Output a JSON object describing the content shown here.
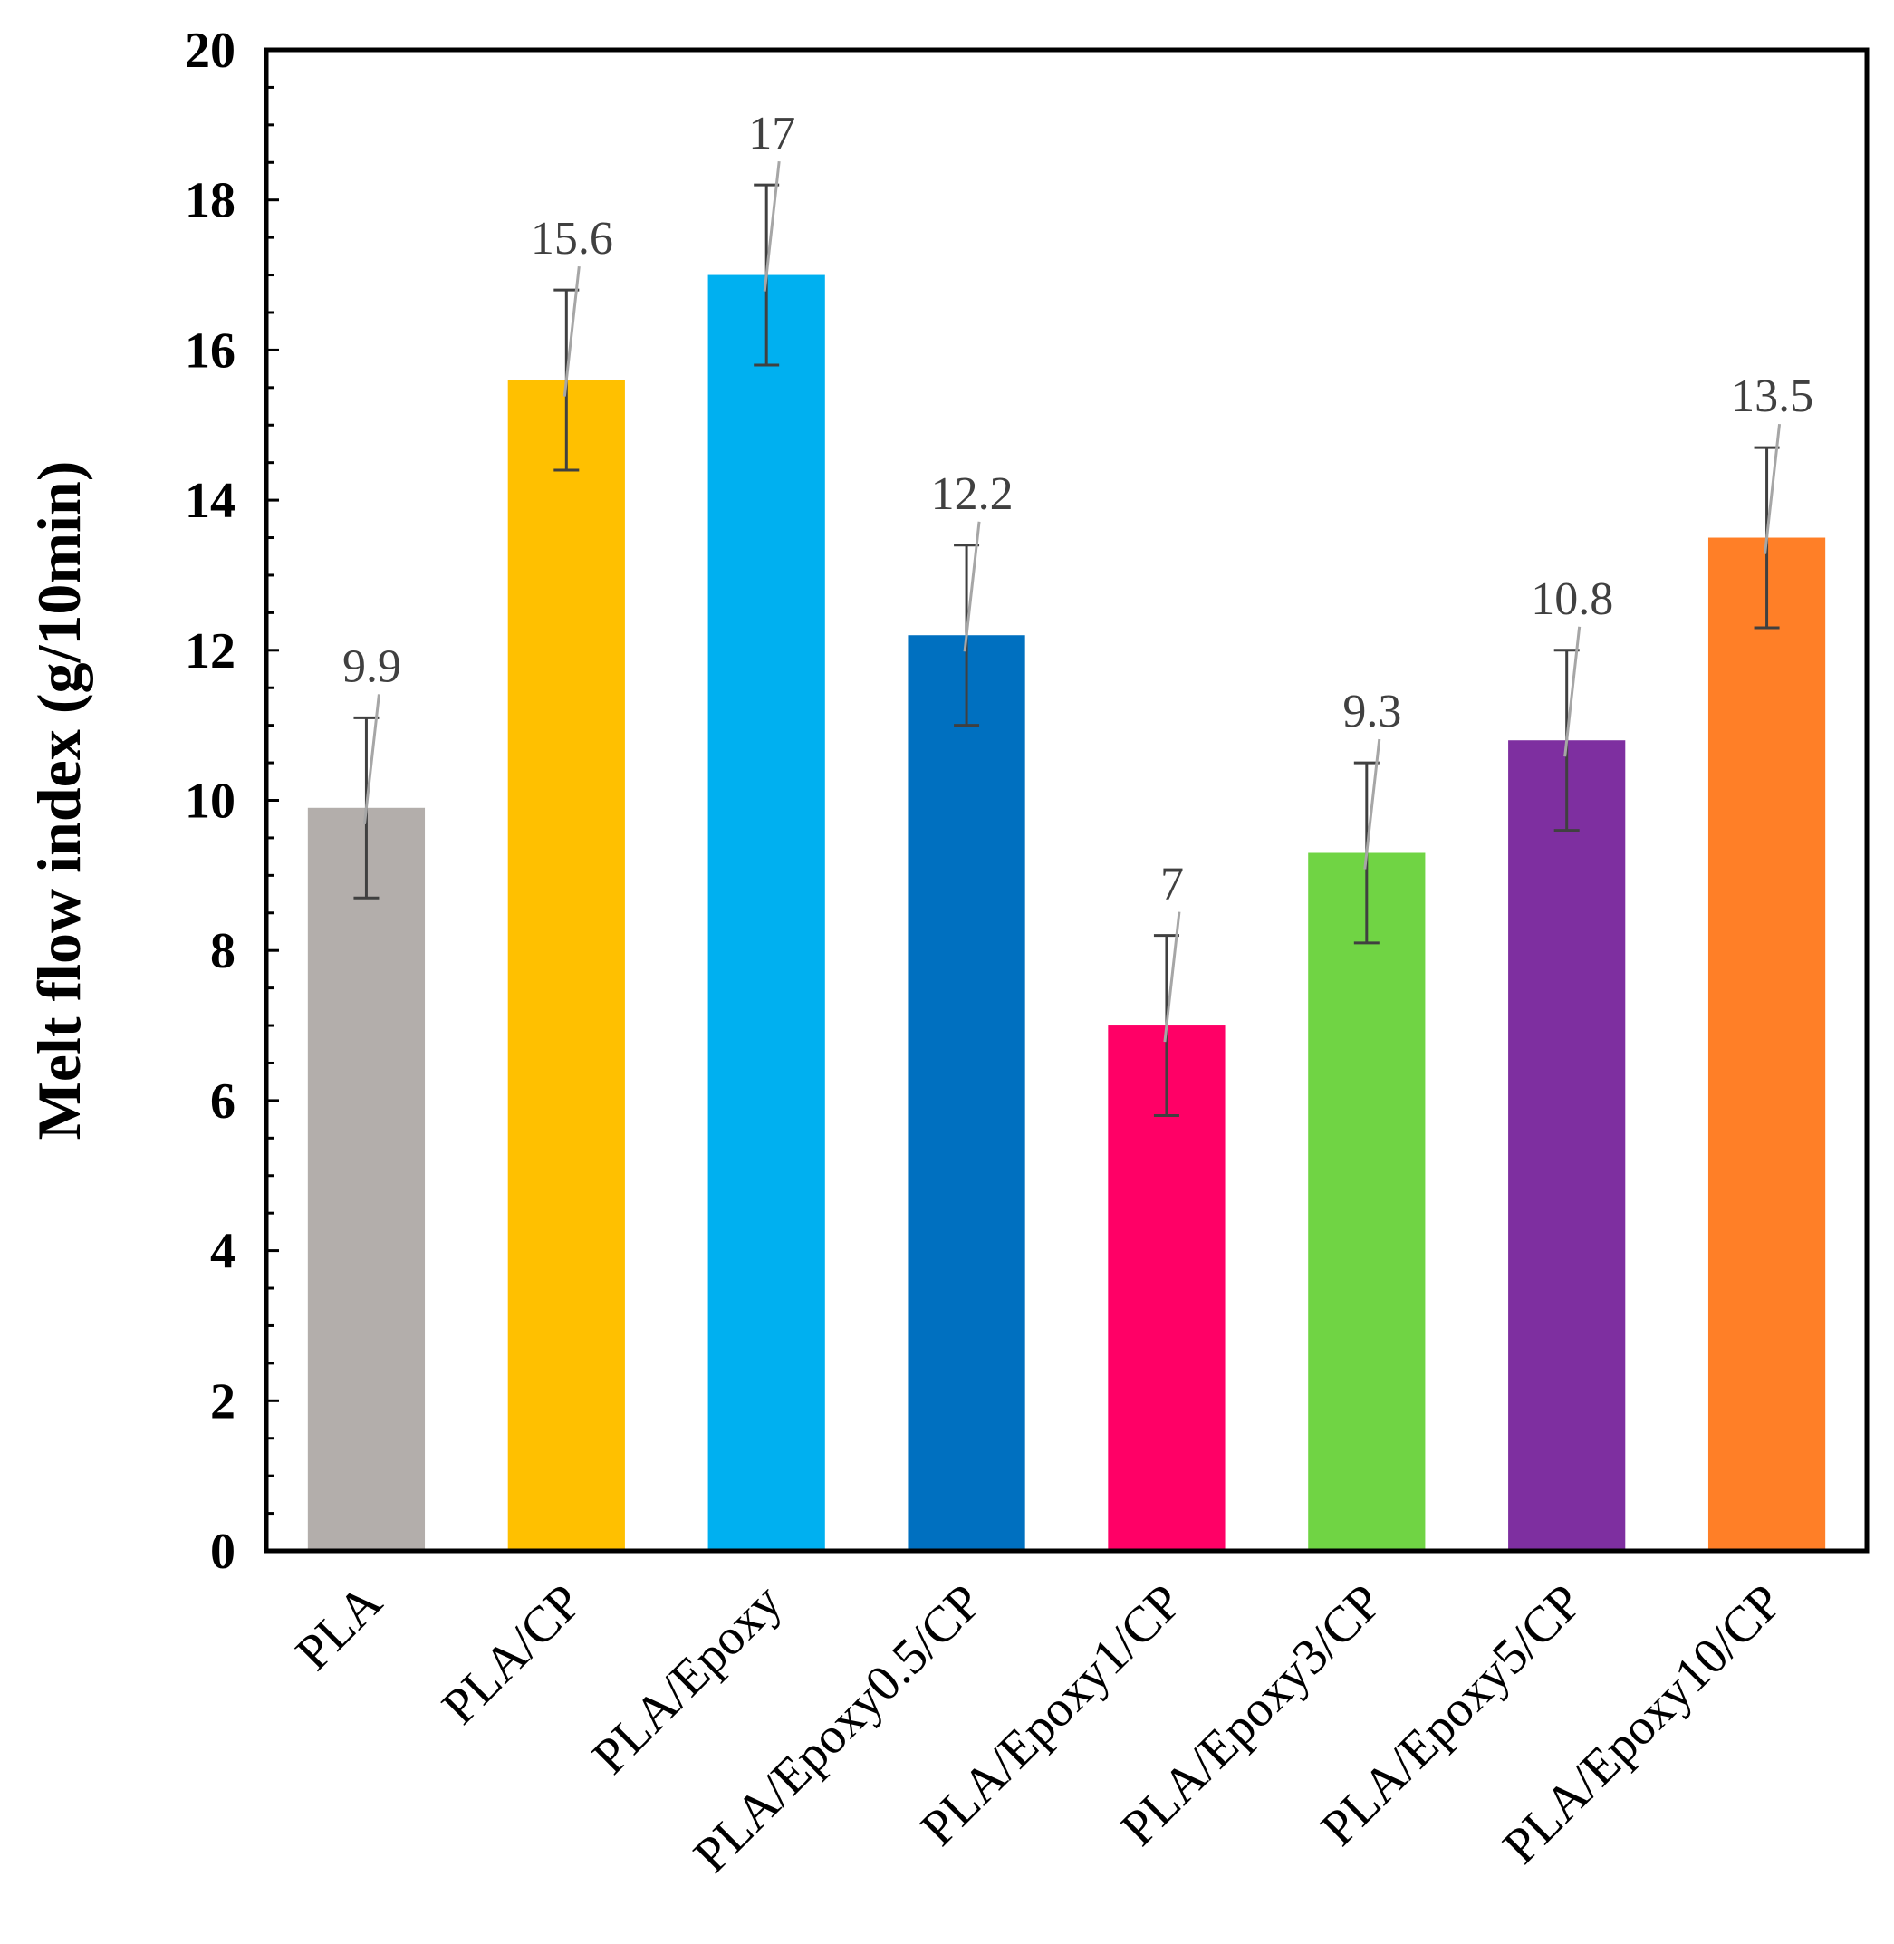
{
  "chart_data": {
    "type": "bar",
    "title": "",
    "xlabel": "",
    "ylabel": "Melt flow index (g/10min)",
    "ylim": [
      0,
      20
    ],
    "yticks": [
      0,
      2,
      4,
      6,
      8,
      10,
      12,
      14,
      16,
      18,
      20
    ],
    "ytick_labels": [
      "0",
      "2",
      "4",
      "6",
      "8",
      "10",
      "12",
      "14",
      "16",
      "18",
      "20"
    ],
    "categories": [
      "PLA",
      "PLA/CP",
      "PLA/Epoxy",
      "PLA/Epoxy0.5/CP",
      "PLA/Epoxy1/CP",
      "PLA/Epoxy3/CP",
      "PLA/Epoxy5/CP",
      "PLA/Epoxy10/CP"
    ],
    "values": [
      9.9,
      15.6,
      17,
      12.2,
      7,
      9.3,
      10.8,
      13.5
    ],
    "value_labels": [
      "9.9",
      "15.6",
      "17",
      "12.2",
      "7",
      "9.3",
      "10.8",
      "13.5"
    ],
    "errors": [
      1.2,
      1.2,
      1.2,
      1.2,
      1.2,
      1.2,
      1.2,
      1.2
    ],
    "colors": [
      "#B3AEAB",
      "#FFC000",
      "#00B0F0",
      "#0070C0",
      "#FF0066",
      "#70D444",
      "#7E2FA0",
      "#FF7F27"
    ],
    "grid": false,
    "legend": "none"
  }
}
